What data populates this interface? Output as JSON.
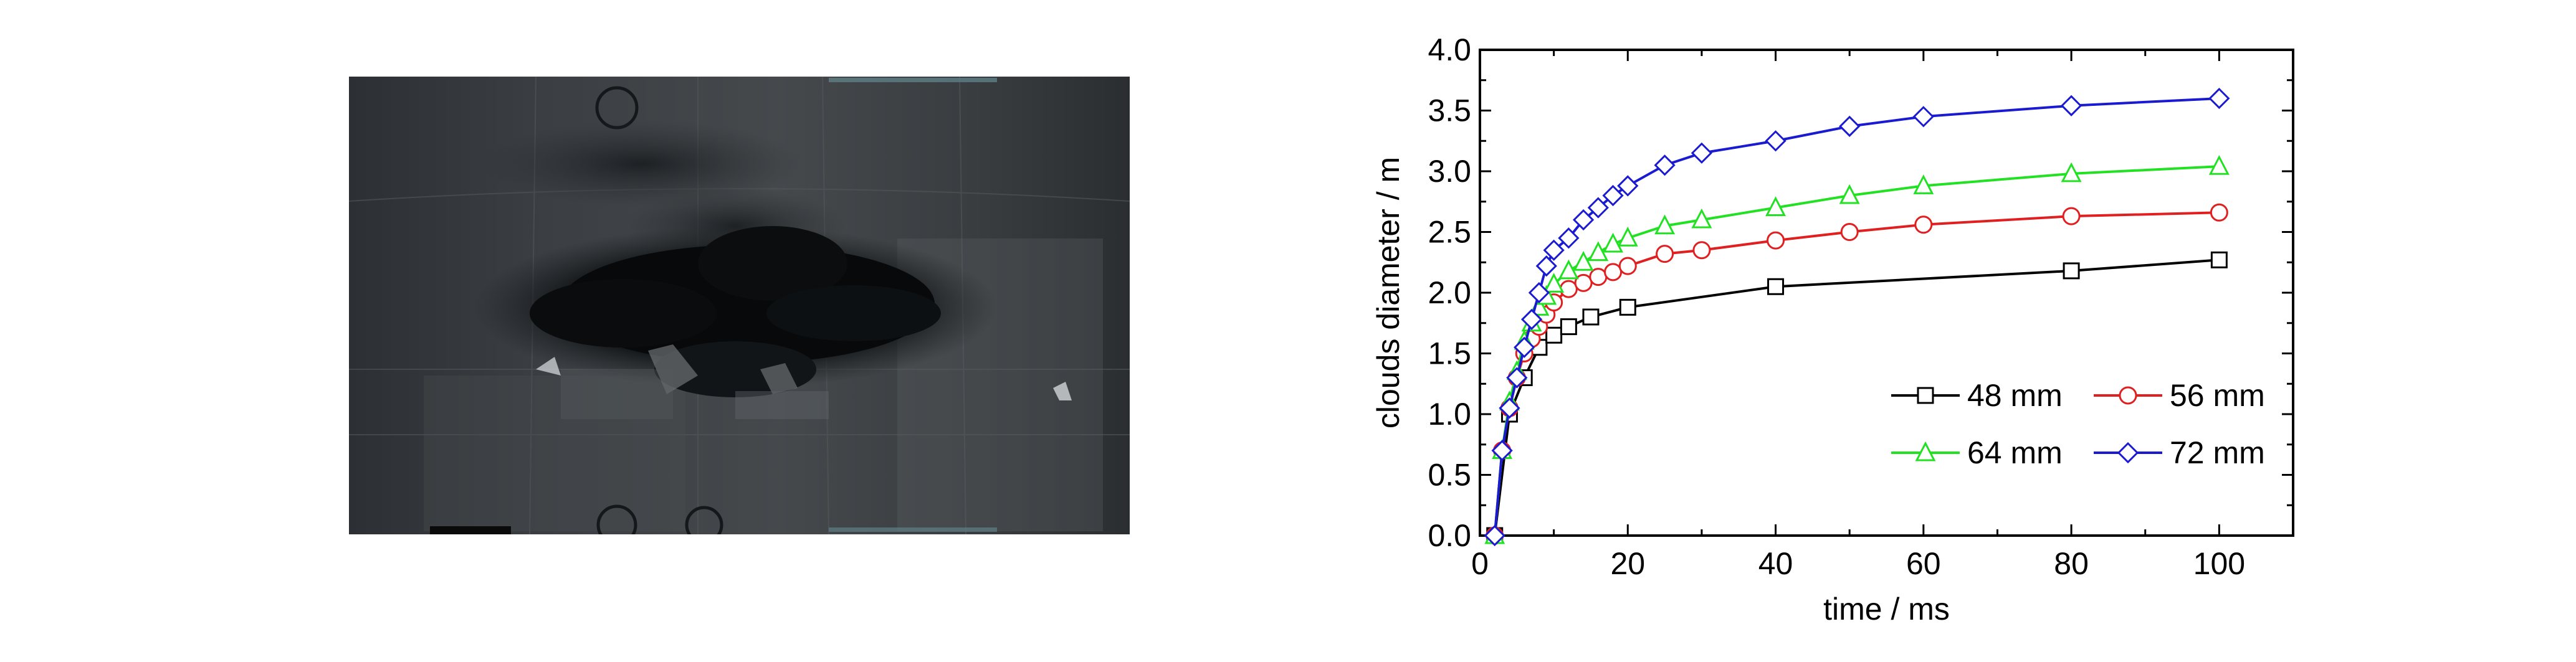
{
  "chart_data": {
    "type": "line",
    "xlabel": "time / ms",
    "ylabel": "clouds diameter / m",
    "xlim": [
      0,
      110
    ],
    "ylim": [
      0,
      4.0
    ],
    "xticks": [
      "0",
      "20",
      "40",
      "60",
      "80",
      "100"
    ],
    "yticks": [
      "0.0",
      "0.5",
      "1.0",
      "1.5",
      "2.0",
      "2.5",
      "3.0",
      "3.5",
      "4.0"
    ],
    "grid": false,
    "legend_position": "bottom-right",
    "series": [
      {
        "name": "48 mm",
        "color": "#000000",
        "marker": "square",
        "x": [
          2,
          4,
          6,
          8,
          10,
          12,
          15,
          20,
          40,
          80,
          100
        ],
        "y": [
          0.0,
          1.0,
          1.3,
          1.55,
          1.65,
          1.72,
          1.8,
          1.88,
          2.05,
          2.18,
          2.27
        ]
      },
      {
        "name": "56 mm",
        "color": "#e02020",
        "marker": "circle",
        "x": [
          2,
          3,
          4,
          5,
          6,
          7,
          8,
          9,
          10,
          12,
          14,
          16,
          18,
          20,
          25,
          30,
          40,
          50,
          60,
          80,
          100
        ],
        "y": [
          0.0,
          0.7,
          1.05,
          1.3,
          1.5,
          1.62,
          1.72,
          1.82,
          1.92,
          2.03,
          2.08,
          2.13,
          2.17,
          2.22,
          2.32,
          2.35,
          2.43,
          2.5,
          2.56,
          2.63,
          2.66
        ]
      },
      {
        "name": "64 mm",
        "color": "#22e022",
        "marker": "triangle",
        "x": [
          2,
          3,
          4,
          5,
          6,
          7,
          8,
          9,
          10,
          12,
          14,
          16,
          18,
          20,
          25,
          30,
          40,
          50,
          60,
          80,
          100
        ],
        "y": [
          0.0,
          0.7,
          1.1,
          1.35,
          1.6,
          1.75,
          1.88,
          1.97,
          2.07,
          2.18,
          2.25,
          2.33,
          2.4,
          2.45,
          2.55,
          2.6,
          2.7,
          2.8,
          2.88,
          2.98,
          3.04
        ]
      },
      {
        "name": "72 mm",
        "color": "#1a1ad0",
        "marker": "diamond",
        "x": [
          2,
          3,
          4,
          5,
          6,
          7,
          8,
          9,
          10,
          12,
          14,
          16,
          18,
          20,
          25,
          30,
          40,
          50,
          60,
          80,
          100
        ],
        "y": [
          0.0,
          0.7,
          1.05,
          1.3,
          1.55,
          1.78,
          2.0,
          2.22,
          2.35,
          2.45,
          2.6,
          2.7,
          2.8,
          2.88,
          3.05,
          3.15,
          3.25,
          3.37,
          3.45,
          3.54,
          3.6
        ]
      }
    ]
  }
}
